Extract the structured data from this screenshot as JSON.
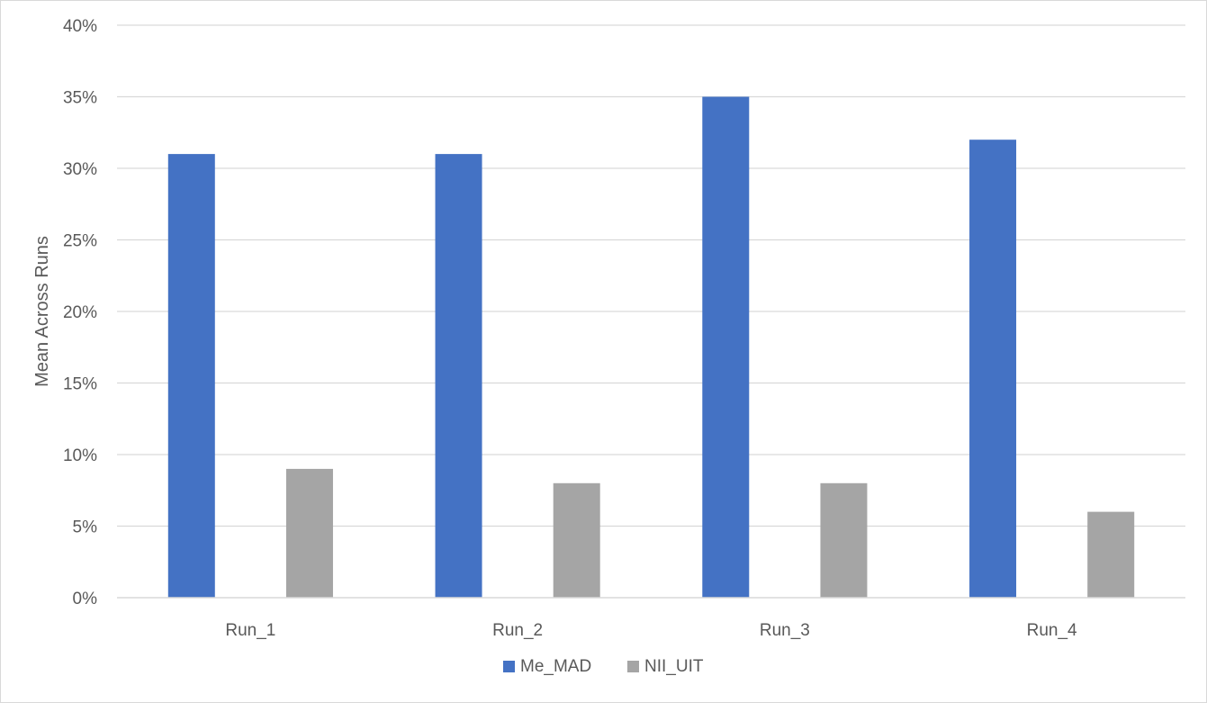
{
  "chart_data": {
    "type": "bar",
    "title": "",
    "xlabel": "",
    "ylabel": "Mean Across Runs",
    "categories": [
      "Run_1",
      "Run_2",
      "Run_3",
      "Run_4"
    ],
    "series": [
      {
        "name": "Me_MAD",
        "values": [
          0.31,
          0.31,
          0.35,
          0.32
        ],
        "color": "#4472C4"
      },
      {
        "name": "NII_UIT",
        "values": [
          0.09,
          0.08,
          0.08,
          0.06
        ],
        "color": "#A5A5A5"
      }
    ],
    "ylim": [
      0,
      0.4
    ],
    "y_ticks": [
      "0%",
      "5%",
      "10%",
      "15%",
      "20%",
      "25%",
      "30%",
      "35%",
      "40%"
    ],
    "grid": true,
    "legend_position": "bottom"
  }
}
